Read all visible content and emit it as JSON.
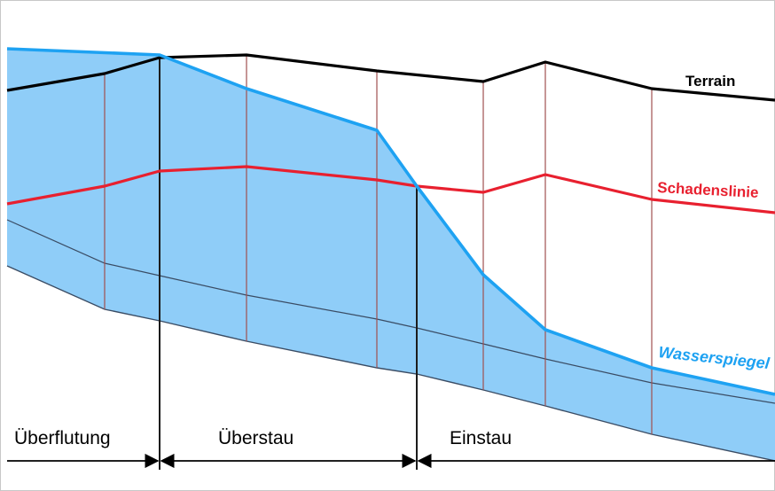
{
  "labels": {
    "terrain": "Terrain",
    "schadenslinie": "Schadenslinie",
    "wasserspiegel": "Wasserspiegel"
  },
  "zones": [
    {
      "label": "Überflutung"
    },
    {
      "label": "Überstau"
    },
    {
      "label": "Einstau"
    }
  ],
  "colors": {
    "terrain": "#000000",
    "schadenslinie": "#e8202f",
    "wasserspiegel": "#1ea2f2",
    "water_fill": "#8fcdf8",
    "verticals": "#a05050"
  }
}
